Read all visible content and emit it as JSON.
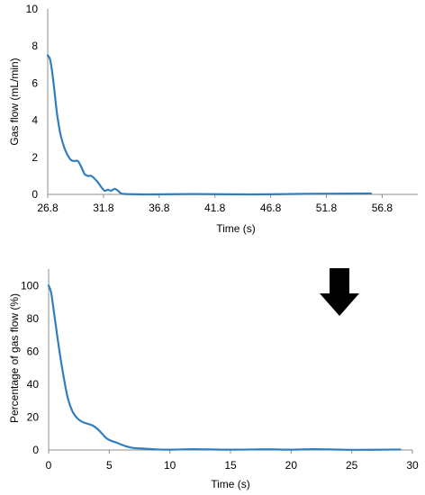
{
  "chart_data": [
    {
      "type": "line",
      "title": "",
      "xlabel": "Time (s)",
      "ylabel": "Gas flow (mL/min)",
      "xlim": [
        26.8,
        60
      ],
      "ylim": [
        0,
        10
      ],
      "xticks": [
        26.8,
        31.8,
        36.8,
        41.8,
        46.8,
        51.8,
        56.8
      ],
      "xtick_labels": [
        "26.8",
        "31.8",
        "36.8",
        "41.8",
        "46.8",
        "51.8",
        "56.8"
      ],
      "yticks": [
        0,
        2,
        4,
        6,
        8,
        10
      ],
      "ytick_labels": [
        "0",
        "2",
        "4",
        "6",
        "8",
        "10"
      ],
      "grid": false,
      "legend": "none",
      "color": "#2f7fc0",
      "series": [
        {
          "x": [
            26.8,
            27.0,
            27.2,
            27.4,
            27.6,
            27.8,
            28.0,
            28.3,
            28.6,
            28.9,
            29.2,
            29.5,
            29.8,
            30.1,
            30.4,
            30.7,
            31.0,
            31.3,
            31.6,
            31.9,
            32.2,
            32.5,
            32.8,
            33.1,
            33.4,
            33.8,
            34.5,
            36.0,
            40.0,
            45.0,
            50.0,
            55.8
          ],
          "y": [
            7.5,
            7.3,
            6.6,
            5.6,
            4.5,
            3.7,
            3.1,
            2.5,
            2.1,
            1.85,
            1.8,
            1.8,
            1.5,
            1.1,
            1.0,
            1.0,
            0.85,
            0.65,
            0.4,
            0.2,
            0.25,
            0.2,
            0.3,
            0.2,
            0.05,
            0.02,
            0.01,
            0.0,
            0.02,
            0.0,
            0.03,
            0.05
          ]
        }
      ]
    },
    {
      "type": "line",
      "title": "",
      "xlabel": "Time (s)",
      "ylabel": "Percentage of gas flow  (%)",
      "xlim": [
        0,
        30
      ],
      "ylim": [
        0,
        110
      ],
      "xticks": [
        0,
        5,
        10,
        15,
        20,
        25,
        30
      ],
      "xtick_labels": [
        "0",
        "5",
        "10",
        "15",
        "20",
        "25",
        "30"
      ],
      "yticks": [
        0,
        20,
        40,
        60,
        80,
        100
      ],
      "ytick_labels": [
        "0",
        "20",
        "40",
        "60",
        "80",
        "100"
      ],
      "grid": false,
      "legend": "none",
      "color": "#2f7fc0",
      "annotation": "down-arrow-icon",
      "annotation_color": "#000000",
      "series": [
        {
          "x": [
            0,
            0.2,
            0.4,
            0.7,
            1.0,
            1.3,
            1.6,
            2.0,
            2.4,
            2.8,
            3.2,
            3.6,
            4.0,
            4.4,
            4.8,
            5.2,
            5.6,
            6.0,
            6.5,
            7.0,
            7.5,
            8.0,
            9.0,
            10.0,
            12.0,
            15.0,
            18.0,
            20.0,
            22.0,
            25.0,
            29.0
          ],
          "y": [
            100,
            96,
            86,
            70,
            55,
            42,
            31,
            23,
            19,
            17,
            16,
            15,
            13,
            10,
            7,
            5.5,
            4.5,
            3.3,
            2,
            1.2,
            1,
            0.8,
            0.3,
            0.2,
            0.5,
            0.2,
            0.4,
            0.2,
            0.5,
            0.1,
            0.3
          ]
        }
      ]
    }
  ]
}
